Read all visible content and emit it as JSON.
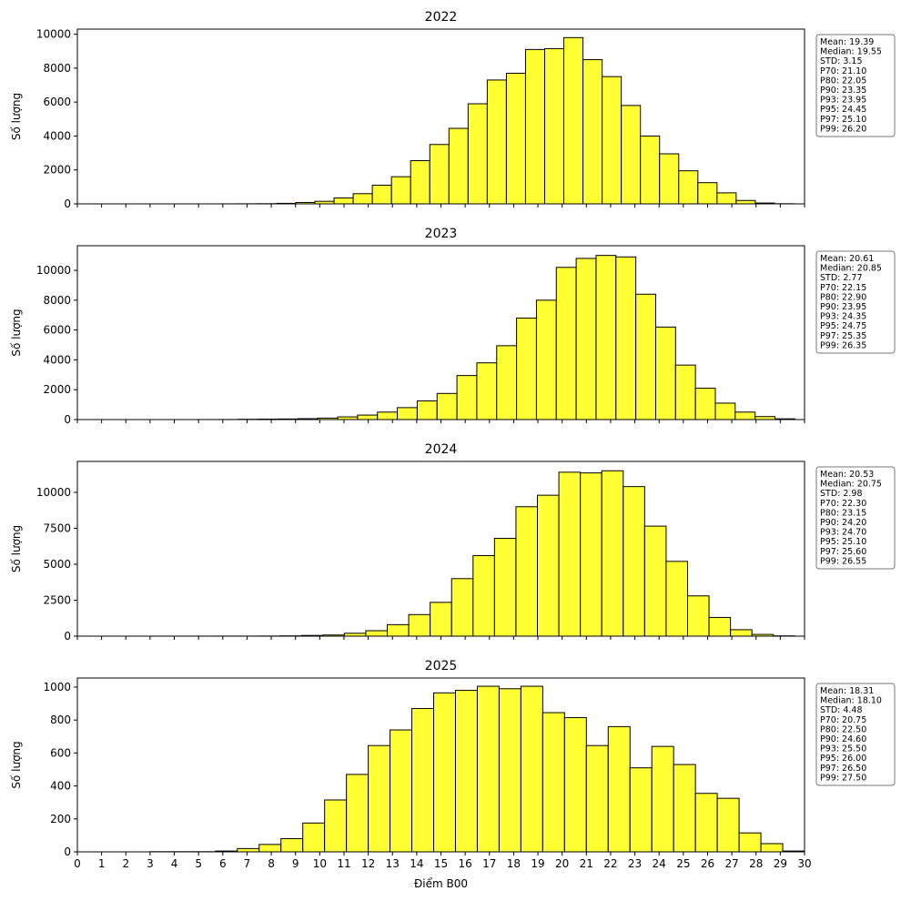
{
  "chart_data": [
    {
      "type": "histogram",
      "title": "2022",
      "ylabel": "Số lượng",
      "color": "#ffff33",
      "edgecolor": "#000000",
      "bins": [
        5.85,
        6.64,
        7.43,
        8.22,
        9.01,
        9.8,
        10.59,
        11.38,
        12.17,
        12.96,
        13.75,
        14.54,
        15.33,
        16.12,
        16.91,
        17.7,
        18.49,
        19.28,
        20.07,
        20.86,
        21.65,
        22.44,
        23.23,
        24.02,
        24.81,
        25.6,
        26.39,
        27.18,
        27.97,
        28.76,
        29.55
      ],
      "values": [
        2,
        5,
        10,
        30,
        80,
        150,
        350,
        600,
        1100,
        1600,
        2550,
        3500,
        4450,
        5900,
        7300,
        7700,
        9100,
        9150,
        9800,
        8500,
        7500,
        5800,
        4000,
        2950,
        1950,
        1250,
        650,
        200,
        50,
        10
      ],
      "xlim": [
        0,
        30
      ],
      "ylim": [
        0,
        10300
      ],
      "yticks": [
        0,
        2000,
        4000,
        6000,
        8000,
        10000
      ],
      "stats": [
        "Mean: 19.39",
        "Median: 19.55",
        "STD: 3.15",
        "P70: 21.10",
        "P80: 22.05",
        "P90: 23.35",
        "P93: 23.95",
        "P95: 24.45",
        "P97: 25.10",
        "P99: 26.20"
      ]
    },
    {
      "type": "histogram",
      "title": "2023",
      "ylabel": "Số lượng",
      "color": "#ffff33",
      "edgecolor": "#000000",
      "bins": [
        5,
        5.82,
        6.64,
        7.46,
        8.28,
        9.1,
        9.92,
        10.74,
        11.56,
        12.38,
        13.2,
        14.02,
        14.84,
        15.66,
        16.48,
        17.3,
        18.12,
        18.94,
        19.76,
        20.58,
        21.4,
        22.22,
        23.04,
        23.86,
        24.68,
        25.5,
        26.32,
        27.14,
        27.96,
        28.78,
        29.6
      ],
      "values": [
        2,
        5,
        20,
        30,
        40,
        60,
        100,
        180,
        300,
        500,
        800,
        1250,
        1750,
        2950,
        3800,
        4950,
        6800,
        8000,
        10200,
        10800,
        11000,
        10900,
        8400,
        6200,
        3650,
        2100,
        1100,
        500,
        200,
        50
      ],
      "xlim": [
        0,
        30
      ],
      "ylim": [
        0,
        11650
      ],
      "yticks": [
        0,
        2000,
        4000,
        6000,
        8000,
        10000
      ],
      "stats": [
        "Mean: 20.61",
        "Median: 20.85",
        "STD: 2.77",
        "P70: 22.15",
        "P80: 22.90",
        "P90: 23.95",
        "P93: 24.35",
        "P95: 24.75",
        "P97: 25.35",
        "P99: 26.35"
      ]
    },
    {
      "type": "histogram",
      "title": "2024",
      "ylabel": "Số lượng",
      "color": "#ffff33",
      "edgecolor": "#000000",
      "bins": [
        3.05,
        3.935,
        4.82,
        5.705,
        6.59,
        7.475,
        8.36,
        9.245,
        10.13,
        11.015,
        11.9,
        12.785,
        13.67,
        14.555,
        15.44,
        16.325,
        17.21,
        18.095,
        18.98,
        19.865,
        20.75,
        21.635,
        22.52,
        23.405,
        24.29,
        25.175,
        26.06,
        26.945,
        27.83,
        28.715,
        29.6
      ],
      "values": [
        2,
        2,
        3,
        5,
        5,
        10,
        20,
        50,
        80,
        200,
        380,
        800,
        1500,
        2350,
        4000,
        5600,
        6800,
        9000,
        9800,
        11400,
        11350,
        11500,
        10400,
        7650,
        5200,
        2800,
        1300,
        450,
        120,
        20
      ],
      "xlim": [
        0,
        30
      ],
      "ylim": [
        0,
        12150
      ],
      "yticks": [
        0,
        2500,
        5000,
        7500,
        10000
      ],
      "stats": [
        "Mean: 20.53",
        "Median: 20.75",
        "STD: 2.98",
        "P70: 22.30",
        "P80: 23.15",
        "P90: 24.20",
        "P93: 24.70",
        "P95: 25.10",
        "P97: 25.60",
        "P99: 26.55"
      ]
    },
    {
      "type": "histogram",
      "title": "2025",
      "ylabel": "Số lượng",
      "xlabel": "Điểm B00",
      "color": "#ffff33",
      "edgecolor": "#000000",
      "bins": [
        3,
        3.9,
        4.8,
        5.7,
        6.6,
        7.5,
        8.4,
        9.3,
        10.2,
        11.1,
        12,
        12.9,
        13.8,
        14.7,
        15.6,
        16.5,
        17.4,
        18.3,
        19.2,
        20.1,
        21,
        21.9,
        22.8,
        23.7,
        24.6,
        25.5,
        26.4,
        27.3,
        28.2,
        29.1,
        30
      ],
      "values": [
        1,
        1,
        1,
        5,
        20,
        45,
        80,
        175,
        315,
        470,
        645,
        740,
        870,
        965,
        980,
        1005,
        990,
        1005,
        845,
        815,
        645,
        760,
        510,
        640,
        530,
        355,
        325,
        115,
        50,
        5
      ],
      "xlim": [
        0,
        30
      ],
      "ylim": [
        0,
        1055
      ],
      "yticks": [
        0,
        200,
        400,
        600,
        800,
        1000
      ],
      "xticks": [
        0,
        1,
        2,
        3,
        4,
        5,
        6,
        7,
        8,
        9,
        10,
        11,
        12,
        13,
        14,
        15,
        16,
        17,
        18,
        19,
        20,
        21,
        22,
        23,
        24,
        25,
        26,
        27,
        28,
        29,
        30
      ],
      "stats": [
        "Mean: 18.31",
        "Median: 18.10",
        "STD: 4.48",
        "P70: 20.75",
        "P80: 22.50",
        "P90: 24.60",
        "P93: 25.50",
        "P95: 26.00",
        "P97: 26.50",
        "P99: 27.50"
      ]
    }
  ]
}
